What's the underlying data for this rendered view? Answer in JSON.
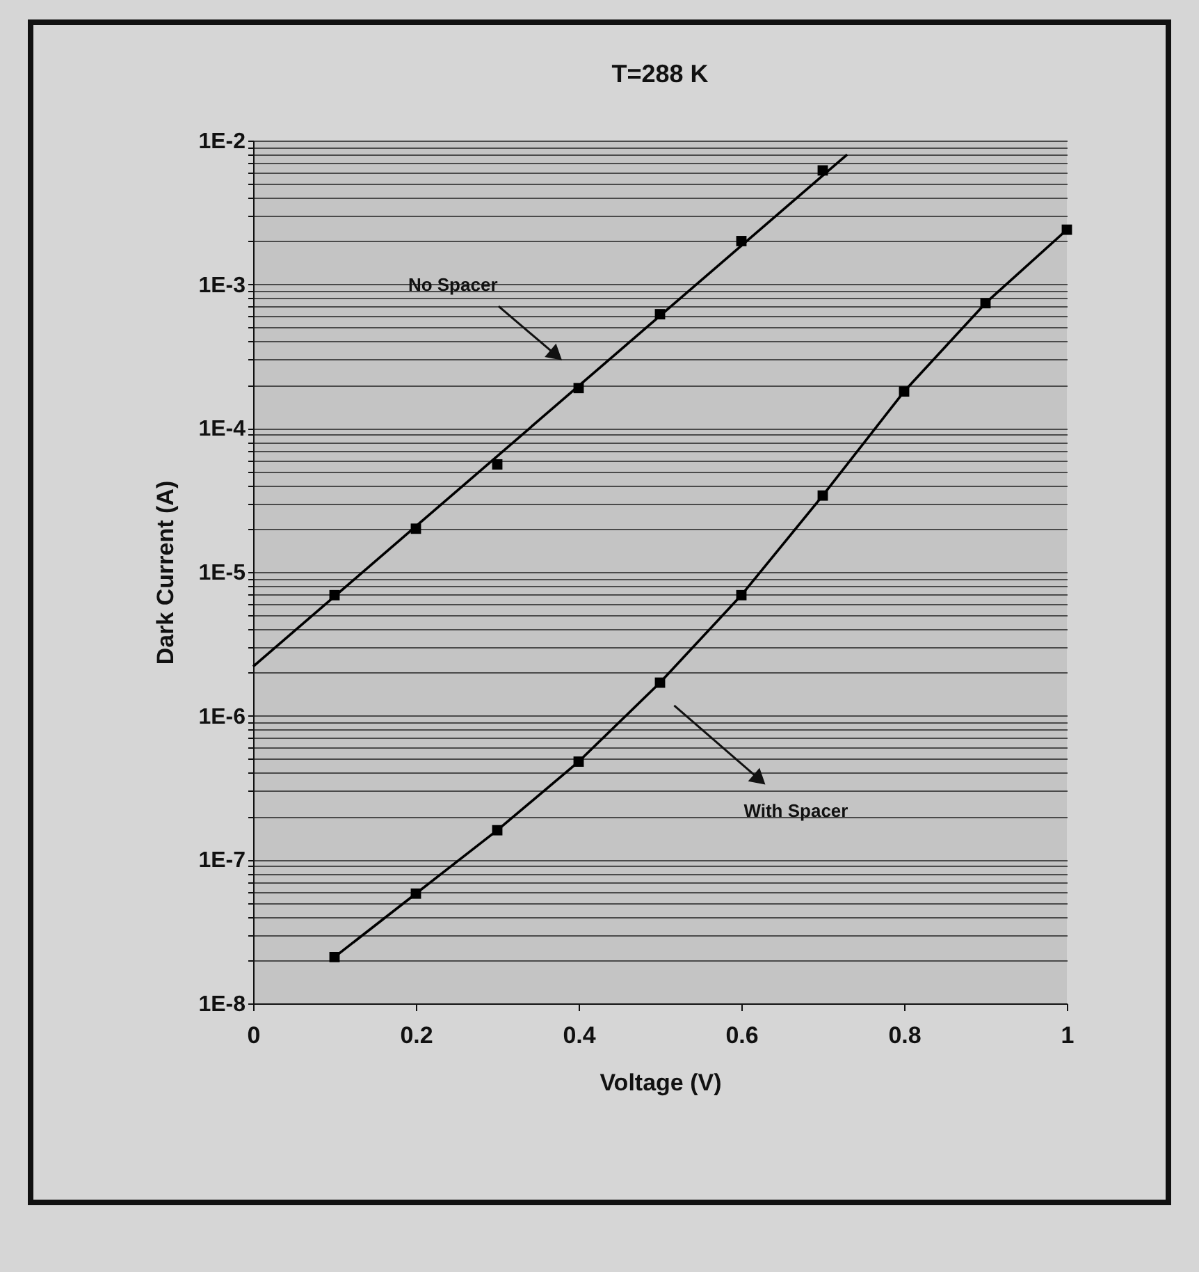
{
  "chart_data": {
    "type": "line",
    "title": "T=288 K",
    "xlabel": "Voltage (V)",
    "ylabel": "Dark Current (A)",
    "log": "y",
    "grid": "y",
    "marker": "square",
    "line_style": "solid",
    "xlim": [
      0,
      1
    ],
    "xticks": [
      0,
      0.2,
      0.4,
      0.6,
      0.8,
      1
    ],
    "ylim": [
      1e-08,
      0.01
    ],
    "yticks": [
      {
        "value": 1e-08,
        "label": "1E-8"
      },
      {
        "value": 2e-08,
        "label": null
      },
      {
        "value": 3e-08,
        "label": null
      },
      {
        "value": 4e-08,
        "label": null
      },
      {
        "value": 5e-08,
        "label": null
      },
      {
        "value": 6e-08,
        "label": null
      },
      {
        "value": 7e-08,
        "label": null
      },
      {
        "value": 8e-08,
        "label": null
      },
      {
        "value": 9e-08,
        "label": null
      },
      {
        "value": 1e-07,
        "label": "1E-7"
      },
      {
        "value": 2e-07,
        "label": null
      },
      {
        "value": 3e-07,
        "label": null
      },
      {
        "value": 4e-07,
        "label": null
      },
      {
        "value": 5e-07,
        "label": null
      },
      {
        "value": 6e-07,
        "label": null
      },
      {
        "value": 7e-07,
        "label": null
      },
      {
        "value": 8e-07,
        "label": null
      },
      {
        "value": 9e-07,
        "label": null
      },
      {
        "value": 1e-06,
        "label": "1E-6"
      },
      {
        "value": 2e-06,
        "label": null
      },
      {
        "value": 3e-06,
        "label": null
      },
      {
        "value": 4e-06,
        "label": null
      },
      {
        "value": 5e-06,
        "label": null
      },
      {
        "value": 6e-06,
        "label": null
      },
      {
        "value": 7e-06,
        "label": null
      },
      {
        "value": 8e-06,
        "label": null
      },
      {
        "value": 9e-06,
        "label": null
      },
      {
        "value": 1e-05,
        "label": "1E-5"
      },
      {
        "value": 2e-05,
        "label": null
      },
      {
        "value": 3e-05,
        "label": null
      },
      {
        "value": 4e-05,
        "label": null
      },
      {
        "value": 5e-05,
        "label": null
      },
      {
        "value": 6e-05,
        "label": null
      },
      {
        "value": 7e-05,
        "label": null
      },
      {
        "value": 8e-05,
        "label": null
      },
      {
        "value": 9e-05,
        "label": null
      },
      {
        "value": 0.0001,
        "label": "1E-4"
      },
      {
        "value": 0.0002,
        "label": null
      },
      {
        "value": 0.0003,
        "label": null
      },
      {
        "value": 0.0004,
        "label": null
      },
      {
        "value": 0.0005,
        "label": null
      },
      {
        "value": 0.0006,
        "label": null
      },
      {
        "value": 0.0007,
        "label": null
      },
      {
        "value": 0.0008,
        "label": null
      },
      {
        "value": 0.0009,
        "label": null
      },
      {
        "value": 0.001,
        "label": "1E-3"
      },
      {
        "value": 0.002,
        "label": null
      },
      {
        "value": 0.003,
        "label": null
      },
      {
        "value": 0.004,
        "label": null
      },
      {
        "value": 0.005,
        "label": null
      },
      {
        "value": 0.006,
        "label": null
      },
      {
        "value": 0.007,
        "label": null
      },
      {
        "value": 0.008,
        "label": null
      },
      {
        "value": 0.009,
        "label": null
      },
      {
        "value": 0.01,
        "label": "1E-2"
      }
    ],
    "series": [
      {
        "type": "line",
        "marker": "none",
        "color": "#000000",
        "x": [
          0,
          0.73
        ],
        "values": [
          2.2e-06,
          0.008
        ]
      },
      {
        "type": "scatter",
        "color": "#000000",
        "x": [
          0.1,
          0.2,
          0.3,
          0.4,
          0.5,
          0.6,
          0.7
        ],
        "values": [
          6.9e-06,
          2e-05,
          5.6e-05,
          0.00019,
          0.00062,
          0.002,
          0.0062
        ]
      },
      {
        "type": "line",
        "color": "#000000",
        "x": [
          0.1,
          0.2,
          0.3,
          0.4,
          0.5,
          0.6,
          0.7,
          0.8,
          0.9,
          1.0
        ],
        "values": [
          2.1e-08,
          5.8e-08,
          1.6e-07,
          4.8e-07,
          1.7e-06,
          6.9e-06,
          3.4e-05,
          0.00018,
          0.00074,
          0.0024
        ]
      }
    ],
    "annotations": [
      {
        "text": "No Spacer",
        "x": 0.37,
        "y": 0.00033
      },
      {
        "text": "With Spacer",
        "x": 0.62,
        "y": 3.7e-07
      }
    ]
  }
}
